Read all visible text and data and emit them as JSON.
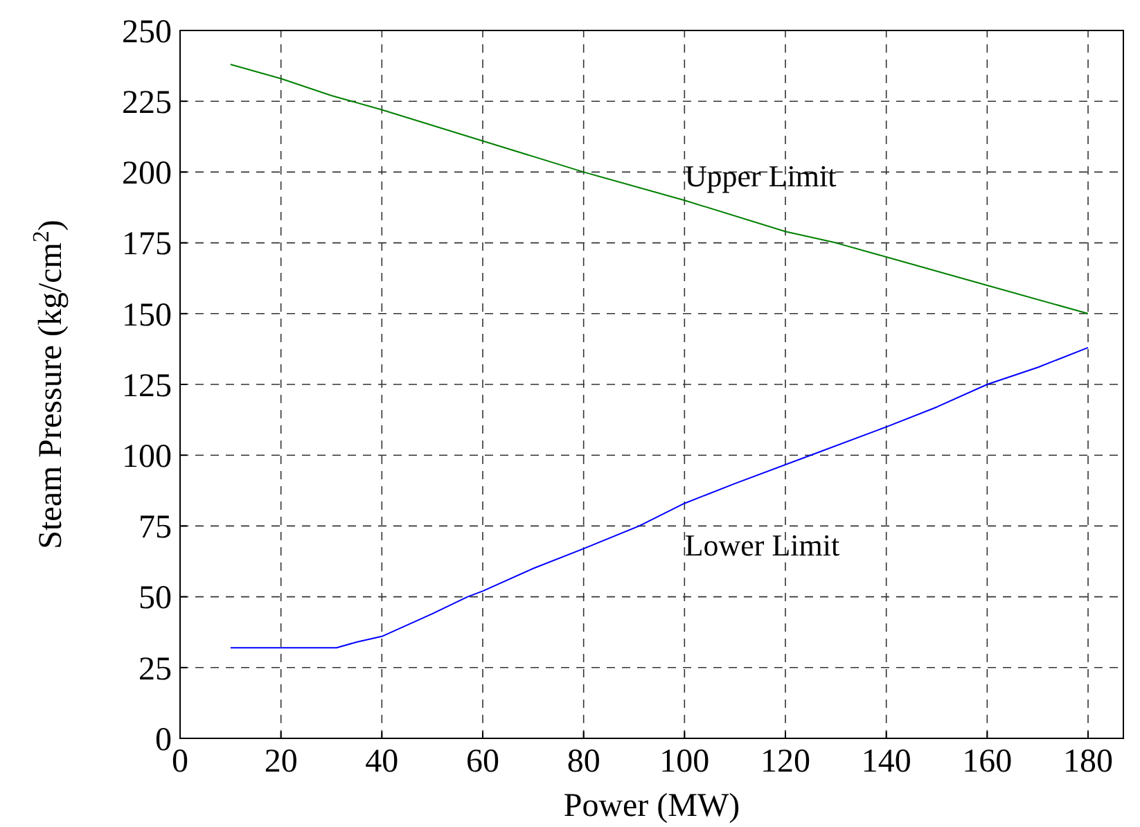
{
  "chart_data": {
    "type": "line",
    "xlabel": "Power (MW)",
    "ylabel": "Steam Pressure (kg/cm$^{2}$)",
    "xlim": [
      0,
      187
    ],
    "xticks": [
      0,
      20,
      40,
      60,
      80,
      100,
      120,
      140,
      160,
      180
    ],
    "ylim": [
      0,
      250
    ],
    "yticks": [
      0,
      25,
      50,
      75,
      100,
      125,
      150,
      175,
      200,
      225,
      250
    ],
    "grid": true,
    "marker": "none",
    "line_style": "solid",
    "series": [
      {
        "name": "Upper Limit",
        "color": "#008000",
        "x": [
          10,
          20,
          30,
          40,
          60,
          80,
          100,
          120,
          130,
          140,
          160,
          180
        ],
        "values": [
          238,
          233,
          227,
          222,
          211,
          200,
          190,
          179,
          175,
          170,
          160,
          150
        ]
      },
      {
        "name": "Lower Limit",
        "color": "#0000ff",
        "x": [
          10,
          20,
          31,
          35,
          40,
          50,
          57,
          60,
          70,
          80,
          91,
          100,
          110,
          125,
          140,
          150,
          160,
          170,
          180
        ],
        "values": [
          32,
          32,
          32,
          34,
          36,
          44,
          50,
          52,
          60,
          67,
          75,
          83,
          90,
          100,
          110,
          117,
          125,
          131,
          138
        ]
      }
    ]
  }
}
